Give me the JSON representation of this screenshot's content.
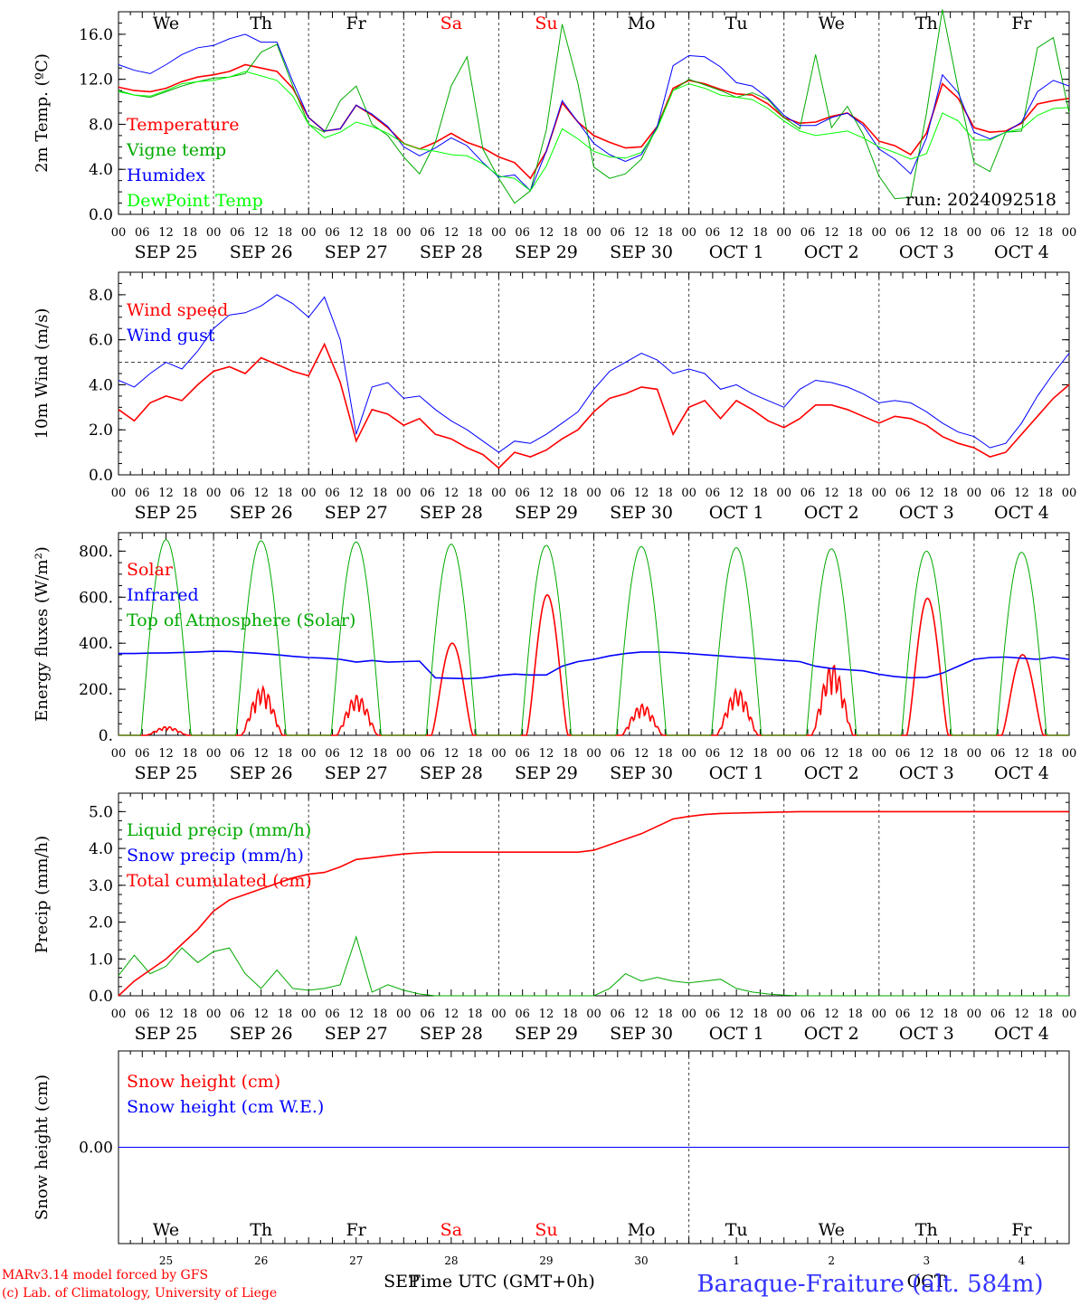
{
  "chart_data": {
    "type": "line",
    "run_label": "run: 2024092518",
    "days": [
      "We",
      "Th",
      "Fr",
      "Sa",
      "Su",
      "Mo",
      "Tu",
      "We",
      "Th",
      "Fr"
    ],
    "weekend_color": "#ff0000",
    "hour_ticks": [
      "00",
      "06",
      "12",
      "18"
    ],
    "date_labels": [
      "SEP 25",
      "SEP 26",
      "SEP 27",
      "SEP 28",
      "SEP 29",
      "SEP 30",
      "OCT  1",
      "OCT  2",
      "OCT  3",
      "OCT  4"
    ],
    "panels": [
      {
        "id": "temperature",
        "ylabel": "2m Temp. (ºC)",
        "ylim": [
          0,
          18
        ],
        "yticks": [
          0,
          4,
          8,
          12,
          16
        ],
        "tick_labels": [
          "0.0",
          "4.0",
          "8.0",
          "12.0",
          "16.0"
        ],
        "series": [
          {
            "name": "Temperature",
            "color": "#ff0000",
            "values": [
              11.3,
              11.0,
              10.9,
              11.2,
              11.8,
              12.2,
              12.4,
              12.7,
              13.3,
              13.0,
              12.7,
              11.2,
              8.6,
              7.4,
              7.6,
              9.7,
              8.8,
              7.7,
              6.3,
              5.8,
              6.4,
              7.2,
              6.4,
              5.9,
              5.1,
              4.6,
              3.2,
              5.6,
              9.9,
              8.2,
              7.0,
              6.4,
              5.9,
              6.0,
              7.8,
              11.2,
              11.9,
              11.6,
              11.1,
              10.7,
              10.6,
              9.8,
              8.6,
              8.1,
              8.2,
              8.7,
              9.0,
              8.1,
              6.5,
              6.1,
              5.3,
              7.2,
              11.6,
              10.3,
              7.7,
              7.3,
              7.4,
              8.1,
              9.8,
              10.1,
              10.3
            ]
          },
          {
            "name": "Vigne temp",
            "color": "#00aa00",
            "values": [
              11.0,
              10.6,
              10.4,
              10.9,
              11.4,
              11.8,
              12.1,
              12.2,
              12.5,
              14.4,
              15.1,
              11.4,
              8.0,
              7.3,
              10.1,
              11.4,
              8.0,
              7.0,
              5.1,
              3.6,
              6.4,
              11.4,
              14.0,
              5.8,
              3.2,
              1.0,
              2.1,
              7.5,
              16.9,
              11.6,
              4.2,
              3.2,
              3.6,
              4.9,
              7.8,
              11.0,
              12.0,
              11.5,
              11.0,
              10.4,
              10.8,
              10.2,
              8.6,
              7.6,
              14.2,
              7.7,
              9.6,
              7.1,
              3.4,
              1.4,
              1.5,
              9.0,
              18.2,
              11.1,
              4.6,
              3.8,
              7.3,
              7.4,
              14.8,
              15.7,
              9.0
            ]
          },
          {
            "name": "Humidex",
            "color": "#0000ff",
            "values": [
              13.3,
              12.8,
              12.5,
              13.3,
              14.2,
              14.8,
              15.0,
              15.6,
              16.0,
              15.3,
              15.3,
              11.8,
              8.6,
              7.4,
              7.6,
              9.7,
              8.9,
              7.8,
              6.0,
              5.2,
              5.9,
              6.8,
              6.1,
              4.6,
              3.3,
              3.5,
              2.1,
              5.6,
              10.1,
              8.2,
              6.3,
              5.3,
              4.7,
              5.3,
              7.8,
              13.2,
              14.1,
              14.0,
              13.1,
              11.7,
              11.4,
              10.3,
              8.8,
              7.9,
              7.9,
              8.6,
              9.0,
              7.9,
              5.8,
              4.9,
              3.6,
              6.8,
              12.4,
              10.8,
              7.3,
              6.7,
              7.3,
              8.2,
              10.9,
              11.9,
              11.4
            ]
          },
          {
            "name": "DewPoint Temp",
            "color": "#00ff00",
            "values": [
              10.9,
              10.6,
              10.5,
              11.0,
              11.6,
              11.8,
              11.9,
              12.2,
              12.7,
              12.3,
              11.9,
              10.5,
              8.0,
              6.8,
              7.3,
              8.2,
              7.8,
              7.2,
              6.3,
              5.8,
              5.6,
              5.3,
              5.2,
              4.5,
              3.4,
              3.2,
              2.1,
              4.3,
              7.6,
              6.7,
              5.6,
              5.1,
              5.0,
              5.5,
              7.6,
              11.0,
              11.6,
              11.2,
              10.6,
              10.4,
              10.2,
              9.4,
              8.3,
              7.4,
              7.0,
              7.2,
              7.4,
              6.8,
              6.0,
              5.5,
              4.9,
              5.4,
              9.0,
              8.3,
              6.6,
              6.6,
              7.3,
              7.6,
              8.8,
              9.4,
              9.5
            ]
          }
        ],
        "legend": [
          "Temperature",
          "Vigne temp",
          "Humidex",
          "DewPoint Temp"
        ],
        "legend_colors": [
          "#ff0000",
          "#00aa00",
          "#0000ff",
          "#00ff00"
        ]
      },
      {
        "id": "wind",
        "ylabel": "10m Wind (m/s)",
        "ylim": [
          0,
          9
        ],
        "yticks": [
          0,
          2,
          4,
          6,
          8
        ],
        "tick_labels": [
          "0.0",
          "2.0",
          "4.0",
          "6.0",
          "8.0"
        ],
        "reference_line": 5.0,
        "series": [
          {
            "name": "Wind speed",
            "color": "#ff0000",
            "values": [
              2.9,
              2.4,
              3.2,
              3.5,
              3.3,
              4.0,
              4.6,
              4.8,
              4.5,
              5.2,
              4.9,
              4.6,
              4.4,
              5.8,
              4.1,
              1.5,
              2.9,
              2.7,
              2.2,
              2.5,
              1.8,
              1.6,
              1.2,
              0.9,
              0.3,
              1.0,
              0.8,
              1.1,
              1.6,
              2.0,
              2.8,
              3.4,
              3.6,
              3.9,
              3.8,
              1.8,
              3.0,
              3.3,
              2.5,
              3.3,
              2.9,
              2.4,
              2.1,
              2.5,
              3.1,
              3.1,
              2.9,
              2.6,
              2.3,
              2.6,
              2.5,
              2.2,
              1.7,
              1.4,
              1.2,
              0.8,
              1.0,
              1.8,
              2.6,
              3.4,
              4.0
            ]
          },
          {
            "name": "Wind gust",
            "color": "#0000ff",
            "values": [
              4.2,
              3.9,
              4.5,
              5.0,
              4.7,
              5.5,
              6.5,
              7.1,
              7.2,
              7.5,
              8.0,
              7.6,
              7.0,
              7.9,
              6.0,
              1.8,
              3.9,
              4.1,
              3.4,
              3.5,
              2.9,
              2.4,
              2.0,
              1.5,
              1.0,
              1.5,
              1.4,
              1.8,
              2.3,
              2.8,
              3.8,
              4.6,
              5.0,
              5.4,
              5.1,
              4.5,
              4.7,
              4.5,
              3.8,
              4.0,
              3.6,
              3.3,
              3.0,
              3.8,
              4.2,
              4.1,
              3.9,
              3.6,
              3.2,
              3.3,
              3.2,
              2.8,
              2.3,
              1.9,
              1.7,
              1.2,
              1.4,
              2.3,
              3.5,
              4.5,
              5.4
            ]
          }
        ],
        "legend": [
          "Wind speed",
          "Wind gust"
        ],
        "legend_colors": [
          "#ff0000",
          "#0000ff"
        ]
      },
      {
        "id": "energy",
        "ylabel": "Energy fluxes (W/m²)",
        "ylim": [
          0,
          880
        ],
        "yticks": [
          0,
          200,
          400,
          600,
          800
        ],
        "tick_labels": [
          "0.",
          "200.",
          "400.",
          "600.",
          "800."
        ],
        "series": [
          {
            "name": "Solar",
            "color": "#ff0000",
            "peaks": [
              38,
              210,
              175,
              400,
              610,
              135,
              200,
              310,
              595,
              350
            ],
            "peak_shapes": [
              [
                8,
                38
              ],
              [
                10,
                30
              ],
              [
                12,
                35
              ],
              [
                14,
                20
              ],
              [
                16,
                10
              ]
            ]
          },
          {
            "name": "Infrared",
            "color": "#0000ff",
            "values": [
              355,
              355,
              357,
              358,
              360,
              362,
              365,
              364,
              360,
              355,
              350,
              343,
              338,
              335,
              330,
              318,
              325,
              318,
              320,
              322,
              250,
              248,
              246,
              250,
              260,
              266,
              262,
              262,
              300,
              320,
              330,
              345,
              355,
              362,
              362,
              360,
              355,
              350,
              345,
              340,
              335,
              330,
              325,
              320,
              300,
              290,
              285,
              280,
              265,
              255,
              250,
              252,
              270,
              300,
              330,
              338,
              340,
              335,
              330,
              340,
              330
            ]
          },
          {
            "name": "Top of Atmosphere (Solar)",
            "color": "#00aa00",
            "peaks": [
              850,
              845,
              840,
              830,
              825,
              820,
              815,
              810,
              800,
              795
            ]
          }
        ],
        "legend": [
          "Solar",
          "Infrared",
          "Top of Atmosphere (Solar)"
        ],
        "legend_colors": [
          "#ff0000",
          "#0000ff",
          "#00aa00"
        ]
      },
      {
        "id": "precip",
        "ylabel": "Precip (mm/h)",
        "ylim": [
          0,
          5.5
        ],
        "yticks": [
          0,
          1,
          2,
          3,
          4,
          5
        ],
        "tick_labels": [
          "0.0",
          "1.0",
          "2.0",
          "3.0",
          "4.0",
          "5.0"
        ],
        "series": [
          {
            "name": "Liquid precip (mm/h)",
            "color": "#00aa00",
            "values": [
              0.55,
              1.1,
              0.6,
              0.8,
              1.3,
              0.9,
              1.2,
              1.3,
              0.6,
              0.2,
              0.7,
              0.2,
              0.15,
              0.2,
              0.3,
              1.6,
              0.1,
              0.3,
              0.15,
              0.05,
              0.0,
              0.0,
              0.0,
              0.0,
              0.0,
              0.0,
              0.0,
              0.0,
              0.0,
              0.0,
              0.0,
              0.2,
              0.6,
              0.4,
              0.5,
              0.4,
              0.35,
              0.4,
              0.45,
              0.2,
              0.1,
              0.05,
              0.02,
              0.0,
              0.0,
              0.0,
              0.0,
              0.0,
              0.0,
              0.0,
              0.0,
              0.0,
              0.0,
              0.0,
              0.0,
              0.0,
              0.0,
              0.0,
              0.0,
              0.0,
              0.0
            ]
          },
          {
            "name": "Snow precip (mm/h)",
            "color": "#0000ff",
            "values": []
          },
          {
            "name": "Total cumulated (cm)",
            "color": "#ff0000",
            "values": [
              0.0,
              0.4,
              0.7,
              1.0,
              1.4,
              1.8,
              2.3,
              2.6,
              2.75,
              2.9,
              3.05,
              3.2,
              3.3,
              3.35,
              3.5,
              3.7,
              3.75,
              3.8,
              3.85,
              3.88,
              3.9,
              3.9,
              3.9,
              3.9,
              3.9,
              3.9,
              3.9,
              3.9,
              3.9,
              3.9,
              3.95,
              4.1,
              4.25,
              4.4,
              4.6,
              4.8,
              4.87,
              4.92,
              4.95,
              4.96,
              4.97,
              4.98,
              4.99,
              5.0,
              5.0,
              5.0,
              5.0,
              5.0,
              5.0,
              5.0,
              5.0,
              5.0,
              5.0,
              5.0,
              5.0,
              5.0,
              5.0,
              5.0,
              5.0,
              5.0,
              5.0
            ]
          }
        ],
        "legend": [
          "Liquid precip (mm/h)",
          "Snow precip (mm/h)",
          "Total cumulated (cm)"
        ],
        "legend_colors": [
          "#00aa00",
          "#0000ff",
          "#ff0000"
        ]
      },
      {
        "id": "snow",
        "ylabel": "Snow height (cm)",
        "ylim": [
          -1,
          1
        ],
        "yticks": [
          0
        ],
        "tick_labels": [
          "0.00"
        ],
        "series": [
          {
            "name": "Snow height (cm)",
            "color": "#ff0000",
            "values": [
              0,
              0
            ]
          },
          {
            "name": "Snow height (cm W.E.)",
            "color": "#0000ff",
            "values": [
              0,
              0
            ]
          }
        ],
        "legend": [
          "Snow height (cm)",
          "Snow height (cm W.E.)"
        ],
        "legend_colors": [
          "#ff0000",
          "#0000ff"
        ],
        "day_numbers": [
          "25",
          "26",
          "27",
          "28",
          "29",
          "30",
          "1",
          "2",
          "3",
          "4"
        ],
        "month_labels": [
          "SEP",
          "OCT"
        ]
      }
    ],
    "xlabel": "Time UTC (GMT+0h)",
    "station": "Baraque-Fraiture (alt. 584m)",
    "credits": [
      "MARv3.14 model forced by GFS",
      "(c) Lab. of Climatology, University of Liege"
    ]
  }
}
